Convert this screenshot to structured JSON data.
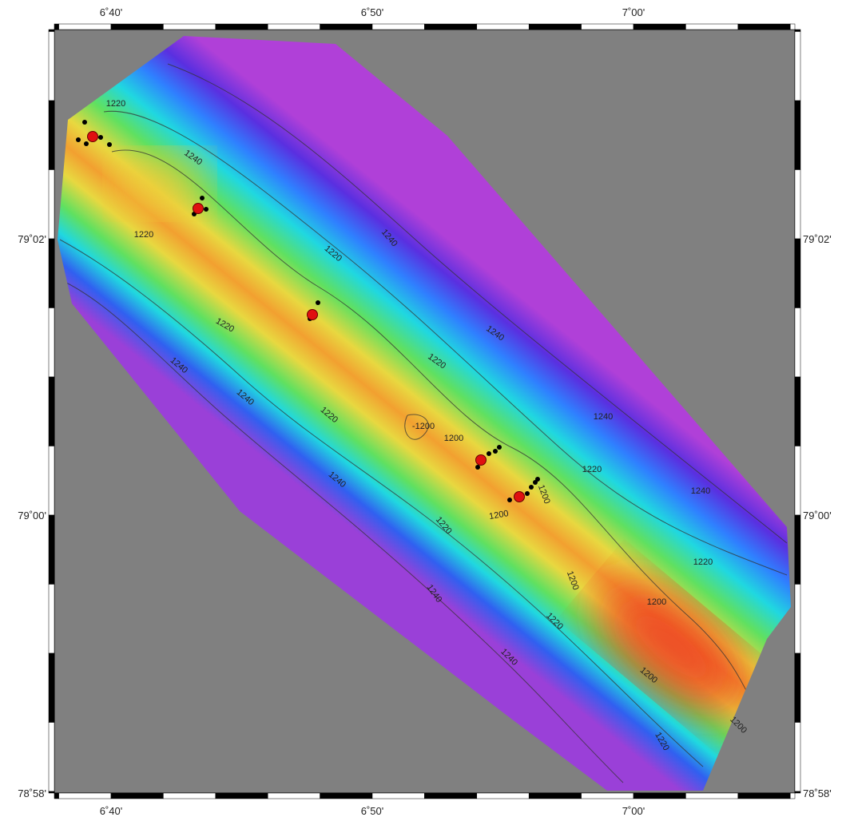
{
  "map": {
    "top_ticks": [
      "6˚40'",
      "6˚50'",
      "7˚00'"
    ],
    "bottom_ticks": [
      "6˚40'",
      "6˚50'",
      "7˚00'"
    ],
    "left_ticks": [
      "79˚02'",
      "79˚00'",
      "78˚58'"
    ],
    "right_ticks": [
      "79˚02'",
      "79˚00'",
      "78˚58'"
    ],
    "contour_labels": [
      "1220",
      "1240",
      "1220",
      "1220",
      "1240",
      "1220",
      "1240",
      "1220",
      "1240",
      "1240",
      "1220",
      "-1200",
      "1200",
      "1200",
      "1200",
      "1220",
      "1240",
      "1240",
      "1220",
      "1240",
      "1220",
      "1240",
      "1200",
      "1200",
      "1220",
      "1240",
      "1200",
      "1220",
      "1200"
    ]
  }
}
